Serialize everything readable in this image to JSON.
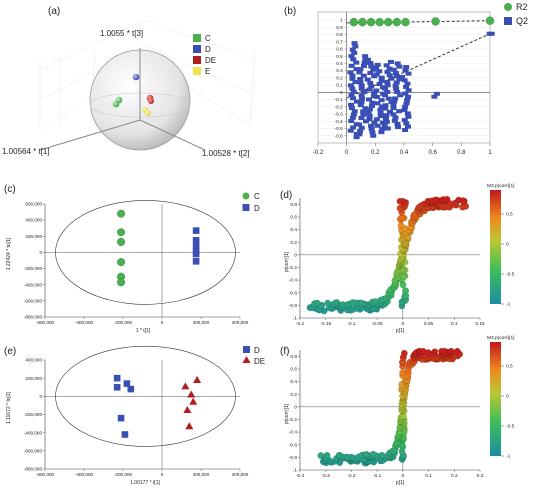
{
  "panel_labels": {
    "a": "(a)",
    "b": "(b)",
    "c": "(c)",
    "d": "(d)",
    "e": "(e)",
    "f": "(f)"
  },
  "colors": {
    "C": "#4caf50",
    "D": "#3a4fb5",
    "DE": "#b01e1e",
    "E": "#f2e24a",
    "R2": "#4caf50",
    "Q2": "#3a4fb5"
  },
  "chart_data": [
    {
      "id": "a",
      "type": "scatter",
      "title": "",
      "axis_labels": {
        "t3": "1.0055 * t[3]",
        "t1": "1.00564 * t[1]",
        "t2": "1.00528 * t[2]"
      },
      "legend": [
        "C",
        "D",
        "DE",
        "E"
      ],
      "legend_position": "top-right",
      "groups": [
        {
          "name": "C",
          "points": 2
        },
        {
          "name": "D",
          "points": 1
        },
        {
          "name": "DE",
          "points": 2
        },
        {
          "name": "E",
          "points": 2
        }
      ]
    },
    {
      "id": "b",
      "type": "scatter",
      "title": "",
      "xlim": [
        -0.2,
        1.0
      ],
      "ylim": [
        -0.7,
        1.0
      ],
      "xticks": [
        "-0.2",
        "0",
        "0.2",
        "0.4",
        "0.6",
        "0.8",
        "1"
      ],
      "yticks": [
        "1",
        "0.9",
        "0.8",
        "0.7",
        "0.6",
        "0.5",
        "0.4",
        "0.3",
        "0.2",
        "0.1",
        "0",
        "-0.1",
        "-0.2",
        "-0.3",
        "-0.4",
        "-0.5",
        "-0.6"
      ],
      "legend_position": "top-right",
      "series": [
        {
          "name": "R2",
          "x": [
            0.05,
            0.11,
            0.17,
            0.23,
            0.29,
            0.35,
            0.41,
            0.62,
            1.0
          ],
          "y": [
            0.97,
            0.97,
            0.97,
            0.97,
            0.97,
            0.97,
            0.97,
            0.98,
            0.99
          ]
        },
        {
          "name": "Q2",
          "x": [
            0.05,
            0.11,
            0.17,
            0.23,
            0.29,
            0.35,
            0.41,
            0.62,
            1.0
          ],
          "ymin": [
            -0.62,
            -0.58,
            -0.6,
            -0.55,
            -0.5,
            -0.48,
            -0.52,
            -0.06,
            0.81
          ],
          "ymax": [
            0.68,
            0.5,
            0.45,
            0.38,
            0.42,
            0.4,
            0.35,
            -0.02,
            0.81
          ]
        }
      ],
      "trendlines": [
        {
          "series": "R2",
          "from": [
            0.0,
            0.96
          ],
          "to": [
            1.0,
            0.99
          ]
        },
        {
          "series": "Q2",
          "from": [
            0.0,
            -0.08
          ],
          "to": [
            1.0,
            0.81
          ]
        }
      ]
    },
    {
      "id": "c",
      "type": "scatter",
      "title": "",
      "xlabel": "1 * t[1]",
      "ylabel": "1.22424 * to[1]",
      "xlim": [
        -600000,
        400000
      ],
      "ylim": [
        -800000,
        600000
      ],
      "xticks": [
        "-600,000",
        "-400,000",
        "-200,000",
        "0",
        "200,000",
        "400,000"
      ],
      "yticks": [
        "600,000",
        "400,000",
        "200,000",
        "0",
        "-200,000",
        "-400,000",
        "-600,000",
        "-800,000"
      ],
      "legend": [
        "C",
        "D"
      ],
      "legend_position": "top-right",
      "series": [
        {
          "name": "C",
          "x": [
            -210000,
            -210000,
            -210000,
            -210000,
            -210000,
            -210000
          ],
          "y": [
            480000,
            250000,
            130000,
            -120000,
            -300000,
            -370000
          ]
        },
        {
          "name": "D",
          "x": [
            175000,
            175000,
            175000,
            175000,
            175000,
            175000
          ],
          "y": [
            270000,
            150000,
            80000,
            20000,
            -20000,
            -110000
          ]
        }
      ]
    },
    {
      "id": "d",
      "type": "scatter",
      "title": "",
      "xlabel": "p[1]",
      "ylabel": "p(corr)[1]",
      "xlim": [
        -0.2,
        0.15
      ],
      "ylim": [
        -1.0,
        0.9
      ],
      "xticks": [
        "-0.2",
        "-0.15",
        "-0.1",
        "-0.05",
        "0",
        "0.05",
        "0.1",
        "0.15"
      ],
      "yticks": [
        "0.8",
        "0.6",
        "0.4",
        "0.2",
        "0",
        "-0.2",
        "-0.4",
        "-0.6",
        "-0.8",
        "-1"
      ],
      "colorbar": {
        "title": "M3.p(corr)[1]",
        "ticks": [
          "0.5",
          "0",
          "-0.5",
          "-1"
        ],
        "range": [
          -1,
          0.9
        ]
      },
      "series": [
        {
          "name": "variables",
          "note": "S-plot"
        }
      ]
    },
    {
      "id": "e",
      "type": "scatter",
      "title": "",
      "xlabel": "1.00177 * t[1]",
      "ylabel": "1.11672 * to[1]",
      "xlim": [
        -600000,
        400000
      ],
      "ylim": [
        -800000,
        400000
      ],
      "xticks": [
        "-600,000",
        "-400,000",
        "-200,000",
        "0",
        "200,000",
        "400,000"
      ],
      "yticks": [
        "400,000",
        "200,000",
        "0",
        "-200,000",
        "-400,000",
        "-600,000",
        "-800,000"
      ],
      "legend": [
        "D",
        "DE"
      ],
      "legend_position": "top-right",
      "series": [
        {
          "name": "D",
          "x": [
            -230000,
            -180000,
            -230000,
            -160000,
            -210000,
            -190000
          ],
          "y": [
            200000,
            140000,
            100000,
            80000,
            -240000,
            -420000
          ]
        },
        {
          "name": "DE",
          "x": [
            180000,
            120000,
            150000,
            160000,
            130000,
            140000
          ],
          "y": [
            180000,
            110000,
            20000,
            -60000,
            -150000,
            -330000
          ]
        }
      ]
    },
    {
      "id": "f",
      "type": "scatter",
      "title": "",
      "xlabel": "p[1]",
      "ylabel": "p(corr)[1]",
      "xlim": [
        -0.4,
        0.3
      ],
      "ylim": [
        -1.0,
        0.9
      ],
      "xticks": [
        "-0.4",
        "-0.3",
        "-0.2",
        "-0.1",
        "0",
        "0.1",
        "0.2",
        "0.3"
      ],
      "yticks": [
        "0.8",
        "0.6",
        "0.4",
        "0.2",
        "0",
        "-0.2",
        "-0.4",
        "-0.6",
        "-0.8",
        "-1"
      ],
      "colorbar": {
        "title": "M3.p(corr)[1]",
        "ticks": [
          "0.5",
          "0",
          "-0.5",
          "-1"
        ],
        "range": [
          -1,
          0.9
        ]
      },
      "series": [
        {
          "name": "variables",
          "note": "S-plot"
        }
      ]
    }
  ]
}
